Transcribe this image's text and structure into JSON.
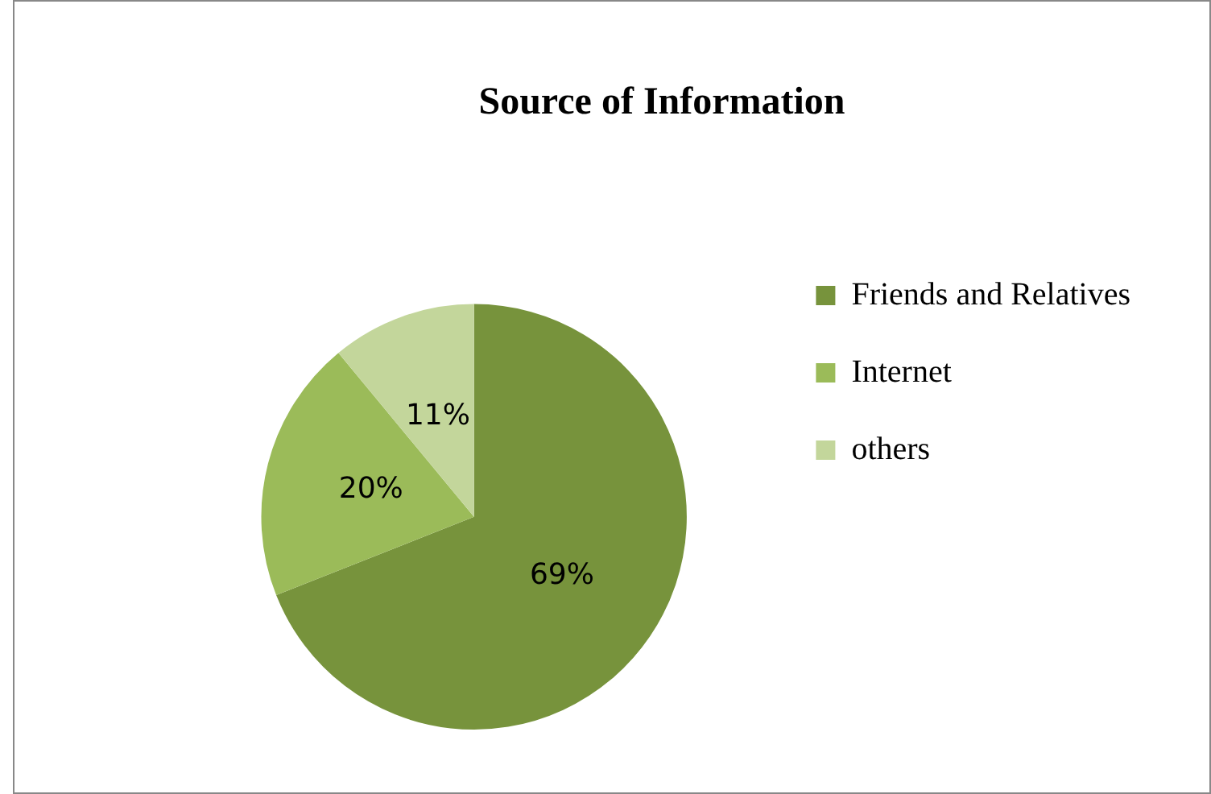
{
  "chart_data": {
    "type": "pie",
    "title": "Source of Information",
    "categories": [
      "Friends and Relatives",
      "Internet",
      "others"
    ],
    "values": [
      69,
      20,
      11
    ],
    "colors": [
      "#77933c",
      "#9bbb59",
      "#c3d69b"
    ],
    "value_labels": [
      "69%",
      "20%",
      "11%"
    ],
    "legend": "right"
  }
}
